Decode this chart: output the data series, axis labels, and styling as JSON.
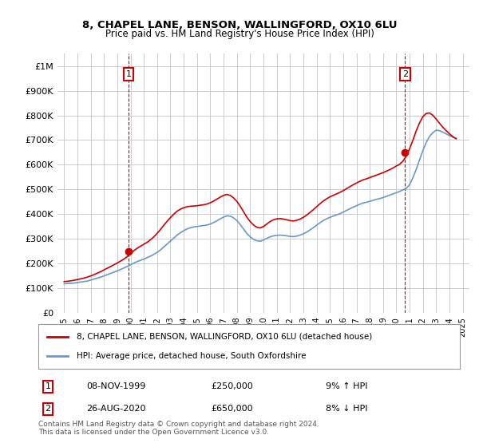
{
  "title": "8, CHAPEL LANE, BENSON, WALLINGFORD, OX10 6LU",
  "subtitle": "Price paid vs. HM Land Registry's House Price Index (HPI)",
  "legend_label_red": "8, CHAPEL LANE, BENSON, WALLINGFORD, OX10 6LU (detached house)",
  "legend_label_blue": "HPI: Average price, detached house, South Oxfordshire",
  "annotation1_label": "1",
  "annotation1_date": "08-NOV-1999",
  "annotation1_price": "£250,000",
  "annotation1_hpi": "9% ↑ HPI",
  "annotation2_label": "2",
  "annotation2_date": "26-AUG-2020",
  "annotation2_price": "£650,000",
  "annotation2_hpi": "8% ↓ HPI",
  "footnote": "Contains HM Land Registry data © Crown copyright and database right 2024.\nThis data is licensed under the Open Government Licence v3.0.",
  "ylim": [
    0,
    1050000
  ],
  "yticks": [
    0,
    100000,
    200000,
    300000,
    400000,
    500000,
    600000,
    700000,
    800000,
    900000,
    1000000
  ],
  "ytick_labels": [
    "£0",
    "£100K",
    "£200K",
    "£300K",
    "£400K",
    "£500K",
    "£600K",
    "£700K",
    "£800K",
    "£900K",
    "£1M"
  ],
  "xlim_start": 1994.5,
  "xlim_end": 2025.5,
  "xticks": [
    1995,
    1996,
    1997,
    1998,
    1999,
    2000,
    2001,
    2002,
    2003,
    2004,
    2005,
    2006,
    2007,
    2008,
    2009,
    2010,
    2011,
    2012,
    2013,
    2014,
    2015,
    2016,
    2017,
    2018,
    2019,
    2020,
    2021,
    2022,
    2023,
    2024,
    2025
  ],
  "color_red": "#cc0000",
  "color_blue": "#6699cc",
  "color_grid": "#cccccc",
  "color_bg": "#ffffff",
  "purchase1_x": 1999.85,
  "purchase1_y": 250000,
  "purchase2_x": 2020.65,
  "purchase2_y": 650000,
  "hpi_x": [
    1995.0,
    1995.25,
    1995.5,
    1995.75,
    1996.0,
    1996.25,
    1996.5,
    1996.75,
    1997.0,
    1997.25,
    1997.5,
    1997.75,
    1998.0,
    1998.25,
    1998.5,
    1998.75,
    1999.0,
    1999.25,
    1999.5,
    1999.75,
    2000.0,
    2000.25,
    2000.5,
    2000.75,
    2001.0,
    2001.25,
    2001.5,
    2001.75,
    2002.0,
    2002.25,
    2002.5,
    2002.75,
    2003.0,
    2003.25,
    2003.5,
    2003.75,
    2004.0,
    2004.25,
    2004.5,
    2004.75,
    2005.0,
    2005.25,
    2005.5,
    2005.75,
    2006.0,
    2006.25,
    2006.5,
    2006.75,
    2007.0,
    2007.25,
    2007.5,
    2007.75,
    2008.0,
    2008.25,
    2008.5,
    2008.75,
    2009.0,
    2009.25,
    2009.5,
    2009.75,
    2010.0,
    2010.25,
    2010.5,
    2010.75,
    2011.0,
    2011.25,
    2011.5,
    2011.75,
    2012.0,
    2012.25,
    2012.5,
    2012.75,
    2013.0,
    2013.25,
    2013.5,
    2013.75,
    2014.0,
    2014.25,
    2014.5,
    2014.75,
    2015.0,
    2015.25,
    2015.5,
    2015.75,
    2016.0,
    2016.25,
    2016.5,
    2016.75,
    2017.0,
    2017.25,
    2017.5,
    2017.75,
    2018.0,
    2018.25,
    2018.5,
    2018.75,
    2019.0,
    2019.25,
    2019.5,
    2019.75,
    2020.0,
    2020.25,
    2020.5,
    2020.75,
    2021.0,
    2021.25,
    2021.5,
    2021.75,
    2022.0,
    2022.25,
    2022.5,
    2022.75,
    2023.0,
    2023.25,
    2023.5,
    2023.75,
    2024.0,
    2024.25,
    2024.5
  ],
  "hpi_y": [
    118000,
    119000,
    120000,
    121000,
    123000,
    125000,
    127000,
    129000,
    133000,
    137000,
    141000,
    145000,
    150000,
    155000,
    160000,
    165000,
    170000,
    176000,
    182000,
    188000,
    195000,
    202000,
    208000,
    213000,
    218000,
    224000,
    230000,
    237000,
    245000,
    255000,
    267000,
    279000,
    291000,
    303000,
    315000,
    325000,
    333000,
    340000,
    345000,
    348000,
    350000,
    352000,
    354000,
    356000,
    360000,
    366000,
    373000,
    381000,
    388000,
    393000,
    392000,
    385000,
    374000,
    358000,
    340000,
    322000,
    308000,
    298000,
    292000,
    290000,
    295000,
    302000,
    308000,
    312000,
    314000,
    315000,
    314000,
    312000,
    310000,
    309000,
    311000,
    315000,
    320000,
    327000,
    336000,
    345000,
    355000,
    365000,
    374000,
    381000,
    387000,
    392000,
    397000,
    402000,
    408000,
    415000,
    422000,
    428000,
    434000,
    440000,
    445000,
    448000,
    452000,
    456000,
    460000,
    463000,
    467000,
    472000,
    477000,
    482000,
    487000,
    492000,
    498000,
    504000,
    520000,
    548000,
    582000,
    620000,
    658000,
    690000,
    715000,
    730000,
    740000,
    738000,
    732000,
    725000,
    718000,
    712000,
    708000
  ],
  "red_x": [
    1995.0,
    1995.25,
    1995.5,
    1995.75,
    1996.0,
    1996.25,
    1996.5,
    1996.75,
    1997.0,
    1997.25,
    1997.5,
    1997.75,
    1998.0,
    1998.25,
    1998.5,
    1998.75,
    1999.0,
    1999.25,
    1999.5,
    1999.75,
    2000.0,
    2000.25,
    2000.5,
    2000.75,
    2001.0,
    2001.25,
    2001.5,
    2001.75,
    2002.0,
    2002.25,
    2002.5,
    2002.75,
    2003.0,
    2003.25,
    2003.5,
    2003.75,
    2004.0,
    2004.25,
    2004.5,
    2004.75,
    2005.0,
    2005.25,
    2005.5,
    2005.75,
    2006.0,
    2006.25,
    2006.5,
    2006.75,
    2007.0,
    2007.25,
    2007.5,
    2007.75,
    2008.0,
    2008.25,
    2008.5,
    2008.75,
    2009.0,
    2009.25,
    2009.5,
    2009.75,
    2010.0,
    2010.25,
    2010.5,
    2010.75,
    2011.0,
    2011.25,
    2011.5,
    2011.75,
    2012.0,
    2012.25,
    2012.5,
    2012.75,
    2013.0,
    2013.25,
    2013.5,
    2013.75,
    2014.0,
    2014.25,
    2014.5,
    2014.75,
    2015.0,
    2015.25,
    2015.5,
    2015.75,
    2016.0,
    2016.25,
    2016.5,
    2016.75,
    2017.0,
    2017.25,
    2017.5,
    2017.75,
    2018.0,
    2018.25,
    2018.5,
    2018.75,
    2019.0,
    2019.25,
    2019.5,
    2019.75,
    2020.0,
    2020.25,
    2020.5,
    2020.75,
    2021.0,
    2021.25,
    2021.5,
    2021.75,
    2022.0,
    2022.25,
    2022.5,
    2022.75,
    2023.0,
    2023.25,
    2023.5,
    2023.75,
    2024.0,
    2024.25,
    2024.5
  ],
  "red_y": [
    127000,
    128000,
    130000,
    132000,
    135000,
    138000,
    141000,
    145000,
    150000,
    155000,
    161000,
    167000,
    174000,
    181000,
    188000,
    195000,
    202000,
    210000,
    218000,
    228000,
    240000,
    252000,
    262000,
    270000,
    278000,
    286000,
    296000,
    308000,
    322000,
    338000,
    355000,
    371000,
    386000,
    400000,
    412000,
    420000,
    426000,
    430000,
    432000,
    433000,
    434000,
    436000,
    438000,
    441000,
    446000,
    453000,
    461000,
    469000,
    476000,
    480000,
    476000,
    466000,
    452000,
    432000,
    410000,
    388000,
    370000,
    356000,
    347000,
    344000,
    350000,
    360000,
    370000,
    377000,
    381000,
    382000,
    380000,
    377000,
    374000,
    372000,
    375000,
    380000,
    387000,
    396000,
    407000,
    418000,
    430000,
    442000,
    453000,
    462000,
    470000,
    476000,
    482000,
    488000,
    495000,
    503000,
    511000,
    519000,
    526000,
    533000,
    539000,
    543000,
    548000,
    553000,
    558000,
    563000,
    568000,
    574000,
    580000,
    587000,
    595000,
    602000,
    615000,
    635000,
    665000,
    700000,
    738000,
    770000,
    795000,
    808000,
    810000,
    800000,
    785000,
    768000,
    752000,
    738000,
    725000,
    714000,
    705000
  ]
}
